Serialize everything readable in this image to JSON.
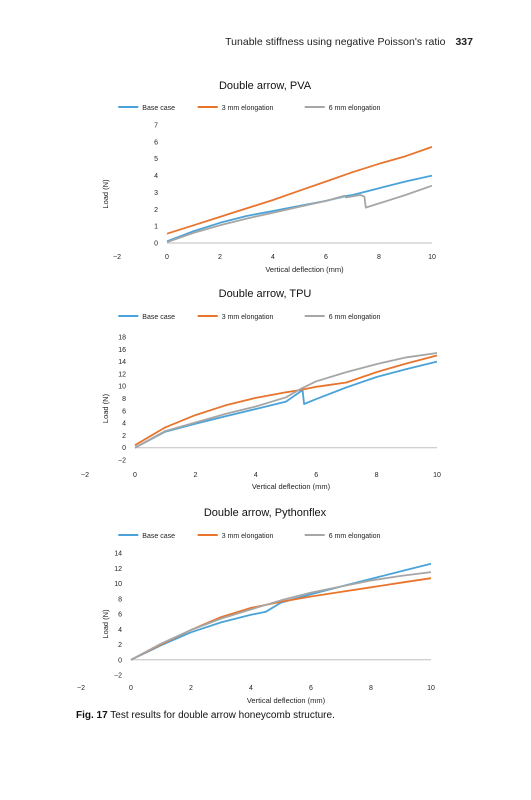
{
  "header": {
    "running_title": "Tunable stiffness using negative Poisson's ratio",
    "page_number": "337"
  },
  "caption": {
    "label": "Fig. 17",
    "text": "Test results for double arrow honeycomb structure."
  },
  "chart_data": [
    {
      "type": "line",
      "title": "Double arrow, PVA",
      "xlabel": "Vertical deflection (mm)",
      "ylabel": "Load (N)",
      "xlim": [
        -2,
        10
      ],
      "ylim": [
        0,
        7
      ],
      "xticks": [
        -2,
        0,
        2,
        4,
        6,
        8,
        10
      ],
      "yticks": [
        0,
        1,
        2,
        3,
        4,
        5,
        6,
        7
      ],
      "legend": "top",
      "grid": false,
      "series": [
        {
          "name": "Base case",
          "color": "#4aa3d8",
          "x": [
            0,
            1,
            2,
            3,
            4,
            5,
            6,
            6.8,
            7,
            8,
            9,
            10
          ],
          "y": [
            0.1,
            0.7,
            1.2,
            1.6,
            1.9,
            2.2,
            2.5,
            2.8,
            2.85,
            3.25,
            3.65,
            4.0
          ]
        },
        {
          "name": "3 mm elongation",
          "color": "#e8752e",
          "x": [
            0,
            1,
            2,
            3,
            4,
            5,
            6,
            7,
            8,
            9,
            10
          ],
          "y": [
            0.55,
            1.05,
            1.55,
            2.05,
            2.55,
            3.1,
            3.65,
            4.2,
            4.7,
            5.15,
            5.7
          ]
        },
        {
          "name": "6 mm elongation",
          "color": "#a6a6a6",
          "x": [
            0,
            1,
            2,
            3,
            4,
            5,
            6,
            6.7,
            6.75,
            7.3,
            7.45,
            7.5,
            8,
            9,
            10
          ],
          "y": [
            0.05,
            0.6,
            1.05,
            1.45,
            1.8,
            2.15,
            2.5,
            2.8,
            2.7,
            2.85,
            2.75,
            2.1,
            2.35,
            2.85,
            3.4
          ]
        }
      ]
    },
    {
      "type": "line",
      "title": "Double arrow, TPU",
      "xlabel": "Vertical deflection (mm)",
      "ylabel": "Load (N)",
      "xlim": [
        -2,
        10
      ],
      "ylim": [
        -2,
        18
      ],
      "xticks": [
        -2,
        0,
        2,
        4,
        6,
        8,
        10
      ],
      "yticks": [
        -2,
        0,
        2,
        4,
        6,
        8,
        10,
        12,
        14,
        16,
        18
      ],
      "legend": "top",
      "grid": false,
      "series": [
        {
          "name": "Base case",
          "color": "#4aa3d8",
          "x": [
            0,
            1,
            2,
            3,
            4,
            5,
            5.5,
            5.55,
            5.6,
            6,
            7,
            8,
            9,
            10
          ],
          "y": [
            0,
            2.6,
            3.9,
            5.1,
            6.3,
            7.5,
            9.2,
            9.3,
            7.1,
            7.9,
            9.8,
            11.5,
            12.8,
            14.0
          ]
        },
        {
          "name": "3 mm elongation",
          "color": "#e8752e",
          "x": [
            0,
            1,
            2,
            3,
            4,
            5,
            5.5,
            6,
            7,
            8,
            9,
            10
          ],
          "y": [
            0.4,
            3.3,
            5.3,
            6.9,
            8.1,
            9.0,
            9.4,
            9.9,
            10.6,
            12.3,
            13.7,
            15.0
          ]
        },
        {
          "name": "6 mm elongation",
          "color": "#a6a6a6",
          "x": [
            0,
            1,
            2,
            3,
            4,
            5,
            5.5,
            6,
            7,
            8,
            9,
            10
          ],
          "y": [
            0,
            2.7,
            4.1,
            5.5,
            6.7,
            8.2,
            9.6,
            10.8,
            12.3,
            13.6,
            14.7,
            15.4
          ]
        }
      ]
    },
    {
      "type": "line",
      "title": "Double arrow, Pythonflex",
      "xlabel": "Vertical deflection (mm)",
      "ylabel": "Load (N)",
      "xlim": [
        -2,
        10
      ],
      "ylim": [
        -2,
        14
      ],
      "xticks": [
        -2,
        0,
        2,
        4,
        6,
        8,
        10
      ],
      "yticks": [
        -2,
        0,
        2,
        4,
        6,
        8,
        10,
        12,
        14
      ],
      "legend": "top",
      "grid": false,
      "series": [
        {
          "name": "Base case",
          "color": "#4aa3d8",
          "x": [
            0,
            1,
            2,
            3,
            4,
            4.5,
            5,
            6,
            7,
            8,
            9,
            10
          ],
          "y": [
            0,
            1.9,
            3.6,
            4.9,
            5.9,
            6.3,
            7.5,
            8.6,
            9.6,
            10.6,
            11.6,
            12.6
          ]
        },
        {
          "name": "3 mm elongation",
          "color": "#e8752e",
          "x": [
            0,
            1,
            2,
            3,
            4,
            5,
            6,
            7,
            8,
            9,
            10
          ],
          "y": [
            0,
            2.0,
            3.9,
            5.6,
            6.8,
            7.6,
            8.3,
            8.9,
            9.5,
            10.1,
            10.7
          ]
        },
        {
          "name": "6 mm elongation",
          "color": "#a6a6a6",
          "x": [
            0,
            1,
            2,
            3,
            4,
            5,
            6,
            7,
            8,
            9,
            10
          ],
          "y": [
            0,
            2.1,
            3.9,
            5.4,
            6.6,
            7.8,
            8.8,
            9.6,
            10.4,
            11.0,
            11.5
          ]
        }
      ]
    }
  ]
}
